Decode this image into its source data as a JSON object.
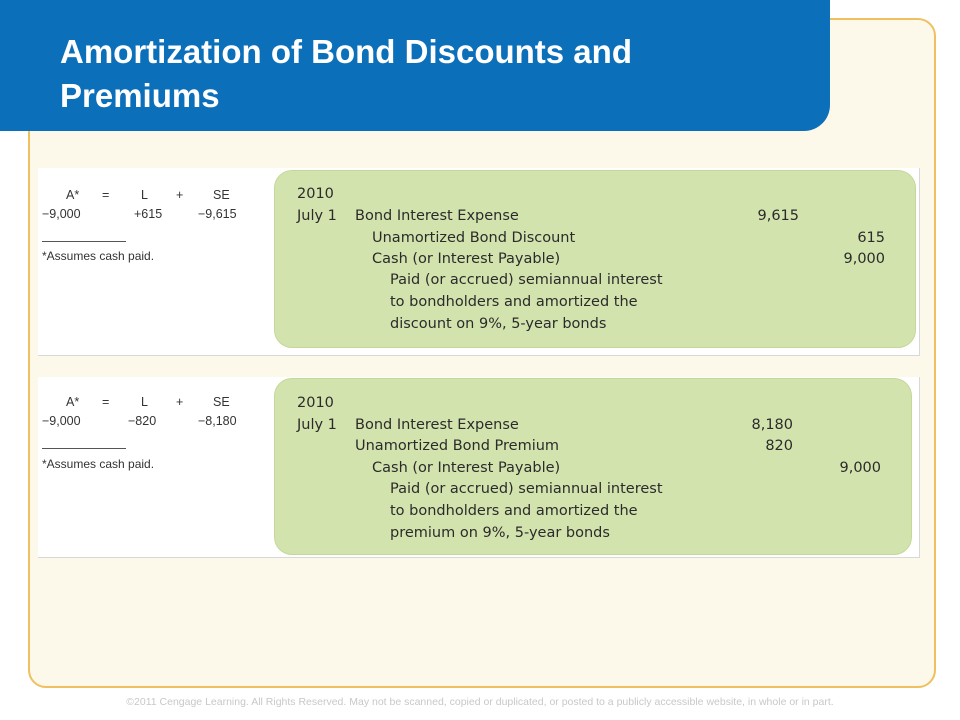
{
  "slide": {
    "title": "Amortization of Bond Discounts and Premiums",
    "footer": "©2011 Cengage Learning. All Rights Reserved. May not be scanned, copied or duplicated, or posted to a publicly accessible website, in whole or in part."
  },
  "discount": {
    "equation": {
      "headers": [
        "A*",
        "=",
        "L",
        "+",
        "SE"
      ],
      "values": [
        "−9,000",
        "+615",
        "−9,615"
      ],
      "note": "*Assumes cash paid."
    },
    "entry": {
      "year": "2010",
      "date": "July 1",
      "lines": [
        {
          "account": "Bond Interest Expense",
          "debit": "9,615",
          "credit": ""
        },
        {
          "account": "Unamortized Bond Discount",
          "debit": "",
          "credit": "615"
        },
        {
          "account": "Cash (or Interest Payable)",
          "debit": "",
          "credit": "9,000"
        }
      ],
      "explanation": [
        "Paid (or accrued) semiannual interest",
        "to bondholders and amortized the",
        "discount on 9%, 5-year bonds"
      ]
    }
  },
  "premium": {
    "equation": {
      "headers": [
        "A*",
        "=",
        "L",
        "+",
        "SE"
      ],
      "values": [
        "−9,000",
        "−820",
        "−8,180"
      ],
      "note": "*Assumes cash paid."
    },
    "entry": {
      "year": "2010",
      "date": "July 1",
      "lines": [
        {
          "account": "Bond Interest Expense",
          "debit": "8,180",
          "credit": ""
        },
        {
          "account": "Unamortized Bond Premium",
          "debit": "820",
          "credit": ""
        },
        {
          "account": "Cash (or Interest Payable)",
          "debit": "",
          "credit": "9,000"
        }
      ],
      "explanation": [
        "Paid (or accrued) semiannual interest",
        "to bondholders and amortized the",
        "premium on 9%, 5-year bonds"
      ]
    }
  }
}
